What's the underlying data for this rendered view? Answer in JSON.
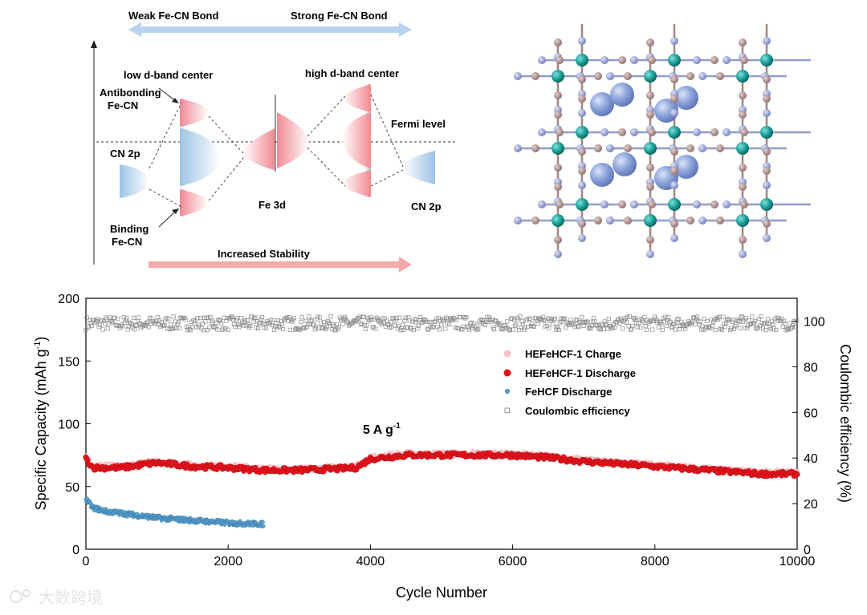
{
  "diagram": {
    "weak_bond": "Weak Fe-CN Bond",
    "strong_bond": "Strong Fe-CN Bond",
    "low_dband": "low d-band center",
    "high_dband": "high d-band center",
    "antibonding_1": "Antibonding",
    "antibonding_2": "Fe-CN",
    "binding_1": "Binding",
    "binding_2": "Fe-CN",
    "cn2p_left": "CN 2p",
    "cn2p_right": "CN 2p",
    "fe3d": "Fe 3d",
    "fermi": "Fermi level",
    "increased_stability": "Increased Stability",
    "colors": {
      "blue": "#9ec3e6",
      "red": "#f3a1a8",
      "arrow_blue": "#b9d3ee",
      "arrow_red": "#f4aaaa"
    }
  },
  "crystal": {
    "colors": {
      "teal": "#169c94",
      "brown": "#a38481",
      "lavender": "#8f9bd2",
      "big": "#7f99d6"
    }
  },
  "watermark": {
    "text": "大数跨境"
  },
  "chart_data": {
    "type": "scatter",
    "annotation": "5 A g",
    "annotation_sup": "-1",
    "xlabel": "Cycle Number",
    "ylabel_left": "Specific Capacity (mAh g",
    "ylabel_left_sup": "-1",
    "ylabel_left_end": ")",
    "ylabel_right": "Coulombic efficiency (%)",
    "xlim": [
      0,
      10000
    ],
    "ylim_left": [
      0,
      200
    ],
    "ylim_right": [
      0,
      110
    ],
    "xticks": [
      "0",
      "2000",
      "4000",
      "6000",
      "8000",
      "10000"
    ],
    "yticks_left": [
      "0",
      "50",
      "100",
      "150",
      "200"
    ],
    "yticks_right": [
      "0",
      "20",
      "40",
      "60",
      "80",
      "100"
    ],
    "series": [
      {
        "name": "HEFeHCF-1 Charge",
        "axis": "left",
        "color": "#f6c1c6",
        "x": [
          0,
          100,
          500,
          1000,
          1500,
          2000,
          2500,
          3000,
          3500,
          3800,
          4000,
          4500,
          5000,
          5500,
          6000,
          6500,
          7000,
          7500,
          8000,
          8500,
          9000,
          9500,
          10000
        ],
        "y": [
          73,
          66,
          66,
          70,
          67,
          66,
          64,
          64,
          65,
          66,
          73,
          76,
          76,
          76,
          76,
          74,
          71,
          69,
          67,
          65,
          63,
          61,
          61
        ]
      },
      {
        "name": "HEFeHCF-1 Discharge",
        "axis": "left",
        "color": "#e3131b",
        "x": [
          0,
          100,
          500,
          1000,
          1500,
          2000,
          2500,
          3000,
          3500,
          3800,
          4000,
          4500,
          5000,
          5500,
          6000,
          6500,
          7000,
          7500,
          8000,
          8500,
          9000,
          9500,
          10000
        ],
        "y": [
          72,
          65,
          65,
          69,
          66,
          65,
          63,
          63,
          64,
          65,
          72,
          75,
          75,
          75,
          75,
          73,
          70,
          68,
          66,
          64,
          62,
          60,
          60
        ]
      },
      {
        "name": "FeHCF Discharge",
        "axis": "left",
        "color": "#5aa0cf",
        "x": [
          0,
          100,
          300,
          600,
          1000,
          1500,
          2000,
          2500
        ],
        "y": [
          40,
          33,
          30,
          28,
          25,
          23,
          21,
          20
        ]
      },
      {
        "name": "Coulombic efficiency",
        "axis": "right",
        "color": "#8c8c8c",
        "x": [
          0,
          2000,
          4000,
          6000,
          8000,
          10000
        ],
        "y": [
          99,
          99,
          99,
          99,
          99,
          99
        ]
      }
    ]
  }
}
